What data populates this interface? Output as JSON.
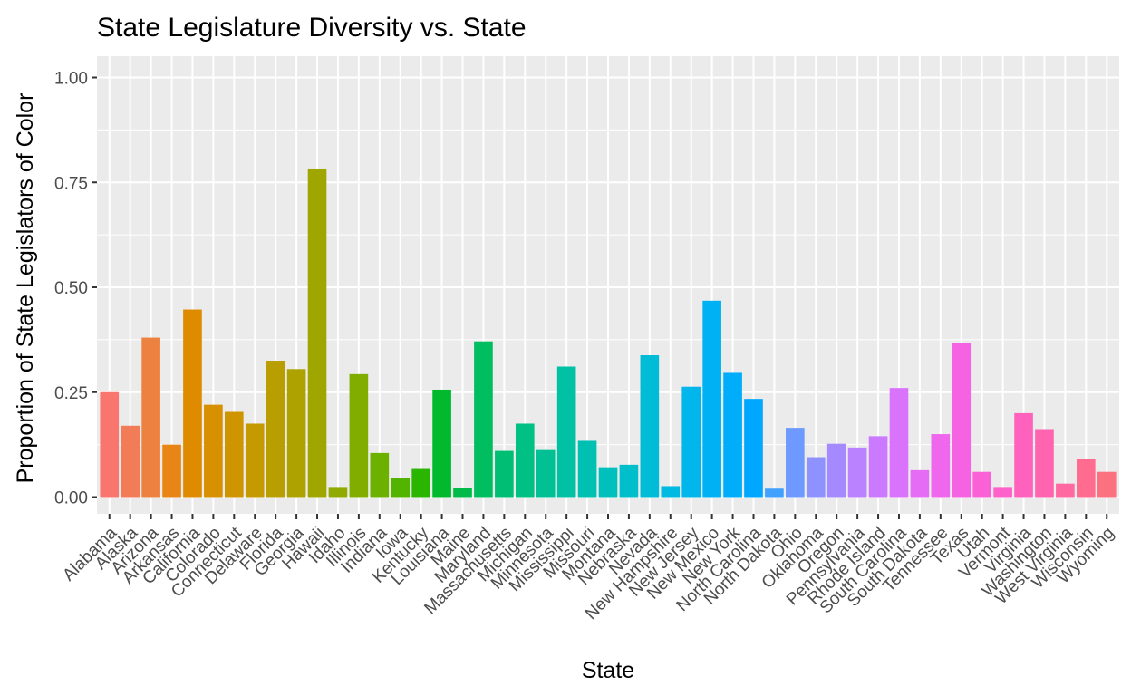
{
  "chart_data": {
    "type": "bar",
    "title": "State Legislature Diversity vs. State",
    "xlabel": "State",
    "ylabel": "Proportion of State Legislators of Color",
    "ylim": [
      0,
      1.0
    ],
    "yticks": [
      "0.00",
      "0.25",
      "0.50",
      "0.75",
      "1.00"
    ],
    "grid": true,
    "legend": "none",
    "categories": [
      "Alabama",
      "Alaska",
      "Arizona",
      "Arkansas",
      "California",
      "Colorado",
      "Connecticut",
      "Delaware",
      "Florida",
      "Georgia",
      "Hawaii",
      "Idaho",
      "Illinois",
      "Indiana",
      "Iowa",
      "Kentucky",
      "Louisiana",
      "Maine",
      "Maryland",
      "Massachusetts",
      "Michigan",
      "Minnesota",
      "Mississippi",
      "Missouri",
      "Montana",
      "Nebraska",
      "Nevada",
      "New Hampshire",
      "New Jersey",
      "New Mexico",
      "New York",
      "North Carolina",
      "North Dakota",
      "Ohio",
      "Oklahoma",
      "Oregon",
      "Pennsylvania",
      "Rhode Island",
      "South Carolina",
      "South Dakota",
      "Tennessee",
      "Texas",
      "Utah",
      "Vermont",
      "Virginia",
      "Washington",
      "West Virginia",
      "Wisconsin",
      "Wyoming"
    ],
    "values": [
      0.25,
      0.17,
      0.38,
      0.125,
      0.447,
      0.22,
      0.203,
      0.175,
      0.325,
      0.305,
      0.783,
      0.024,
      0.293,
      0.105,
      0.045,
      0.069,
      0.256,
      0.021,
      0.371,
      0.11,
      0.175,
      0.112,
      0.311,
      0.134,
      0.071,
      0.077,
      0.338,
      0.026,
      0.263,
      0.468,
      0.296,
      0.234,
      0.02,
      0.165,
      0.095,
      0.127,
      0.118,
      0.145,
      0.26,
      0.064,
      0.15,
      0.368,
      0.06,
      0.024,
      0.2,
      0.162,
      0.032,
      0.09,
      0.06
    ]
  }
}
